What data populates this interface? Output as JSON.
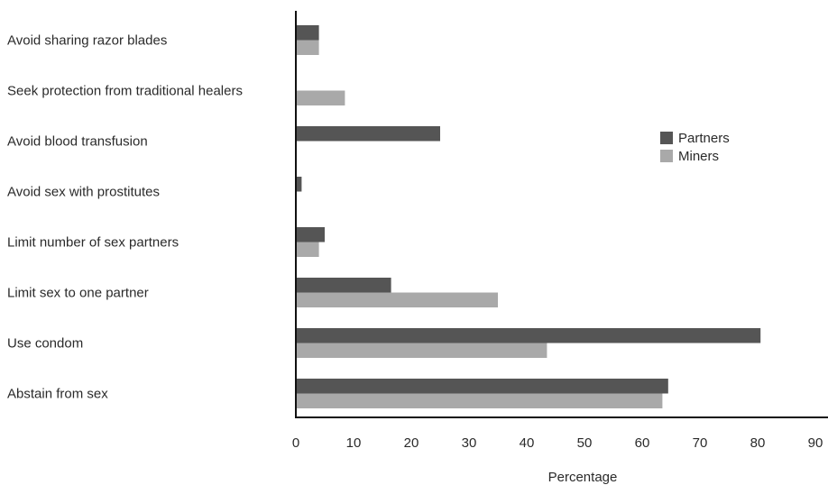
{
  "chart_data": {
    "type": "bar",
    "orientation": "horizontal",
    "categories": [
      "Avoid sharing razor blades",
      "Seek protection from traditional healers",
      "Avoid blood transfusion",
      "Avoid sex with prostitutes",
      "Limit number of sex partners",
      "Limit sex to one partner",
      "Use condom",
      "Abstain from sex"
    ],
    "series": [
      {
        "name": "Partners",
        "color": "#555555",
        "values": [
          4,
          0,
          25,
          1,
          5,
          16.5,
          80.5,
          64.5
        ]
      },
      {
        "name": "Miners",
        "color": "#a9a9a9",
        "values": [
          4,
          8.5,
          0,
          0,
          4,
          35,
          43.5,
          63.5
        ]
      }
    ],
    "xlabel": "Percentage",
    "ylabel": "",
    "xlim": [
      0,
      90
    ],
    "xticks": [
      "0",
      "10",
      "20",
      "30",
      "40",
      "50",
      "60",
      "70",
      "80",
      "90"
    ],
    "grid": false,
    "legend_position": "right"
  }
}
